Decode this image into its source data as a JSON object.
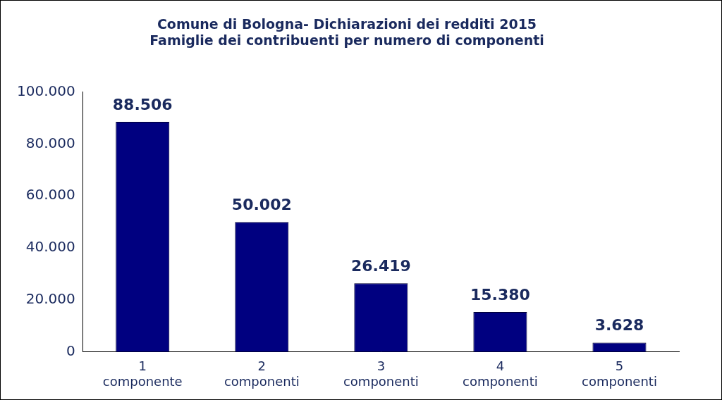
{
  "chart_data": {
    "type": "bar",
    "title": [
      "Comune di Bologna- Dichiarazioni dei redditi 2015",
      "Famiglie dei contribuenti per numero di componenti"
    ],
    "categories": [
      "1 componente",
      "2 componenti",
      "3 componenti",
      "4 componenti",
      "5 componenti"
    ],
    "values": [
      88506,
      50002,
      26419,
      15380,
      3628
    ],
    "value_labels": [
      "88.506",
      "50.002",
      "26.419",
      "15.380",
      "3.628"
    ],
    "data_labels": true,
    "color": "#000080",
    "ylim": [
      0,
      100000
    ],
    "yticks": [
      0,
      {
        "value": 20000,
        "label": "20.000"
      },
      {
        "value": 40000,
        "label": "40.000"
      },
      {
        "value": 60000,
        "label": "60.000"
      },
      {
        "value": 80000,
        "label": "80.000"
      },
      {
        "value": 100000,
        "label": "100.000"
      }
    ],
    "grid": false
  }
}
